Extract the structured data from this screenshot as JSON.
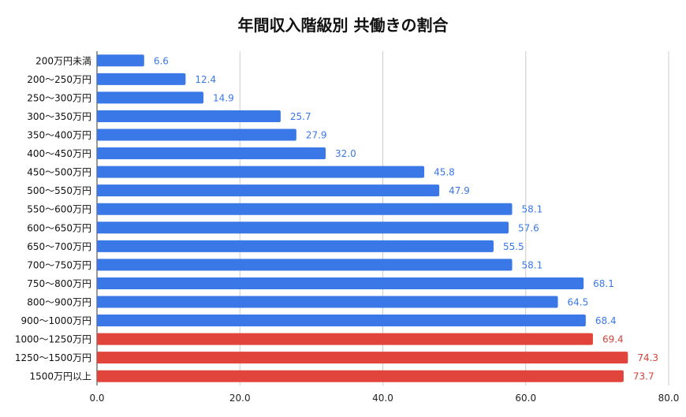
{
  "chart_data": {
    "type": "bar",
    "orientation": "horizontal",
    "title": "年間収入階級別 共働きの割合",
    "xlabel": "",
    "ylabel": "",
    "xlim": [
      0,
      80
    ],
    "x_ticks": [
      "0.0",
      "20.0",
      "40.0",
      "60.0",
      "80.0"
    ],
    "grid": true,
    "legend": "none",
    "categories": [
      "200万円未満",
      "200〜250万円",
      "250〜300万円",
      "300〜350万円",
      "350〜400万円",
      "400〜450万円",
      "450〜500万円",
      "500〜550万円",
      "550〜600万円",
      "600〜650万円",
      "650〜700万円",
      "700〜750万円",
      "750〜800万円",
      "800〜900万円",
      "900〜1000万円",
      "1000〜1250万円",
      "1250〜1500万円",
      "1500万円以上"
    ],
    "values": [
      6.6,
      12.4,
      14.9,
      25.7,
      27.9,
      32.0,
      45.8,
      47.9,
      58.1,
      57.6,
      55.5,
      58.1,
      68.1,
      64.5,
      68.4,
      69.4,
      74.3,
      73.7
    ],
    "value_labels": [
      "6.6",
      "12.4",
      "14.9",
      "25.7",
      "27.9",
      "32.0",
      "45.8",
      "47.9",
      "58.1",
      "57.6",
      "55.5",
      "58.1",
      "68.1",
      "64.5",
      "68.4",
      "69.4",
      "74.3",
      "73.7"
    ],
    "bar_colors": [
      "#3b78e7",
      "#3b78e7",
      "#3b78e7",
      "#3b78e7",
      "#3b78e7",
      "#3b78e7",
      "#3b78e7",
      "#3b78e7",
      "#3b78e7",
      "#3b78e7",
      "#3b78e7",
      "#3b78e7",
      "#3b78e7",
      "#3b78e7",
      "#3b78e7",
      "#e0443a",
      "#e0443a",
      "#e0443a"
    ],
    "label_colors": [
      "#3b78e7",
      "#3b78e7",
      "#3b78e7",
      "#3b78e7",
      "#3b78e7",
      "#3b78e7",
      "#3b78e7",
      "#3b78e7",
      "#3b78e7",
      "#3b78e7",
      "#3b78e7",
      "#3b78e7",
      "#3b78e7",
      "#3b78e7",
      "#3b78e7",
      "#d0433a",
      "#d0433a",
      "#d0433a"
    ]
  }
}
